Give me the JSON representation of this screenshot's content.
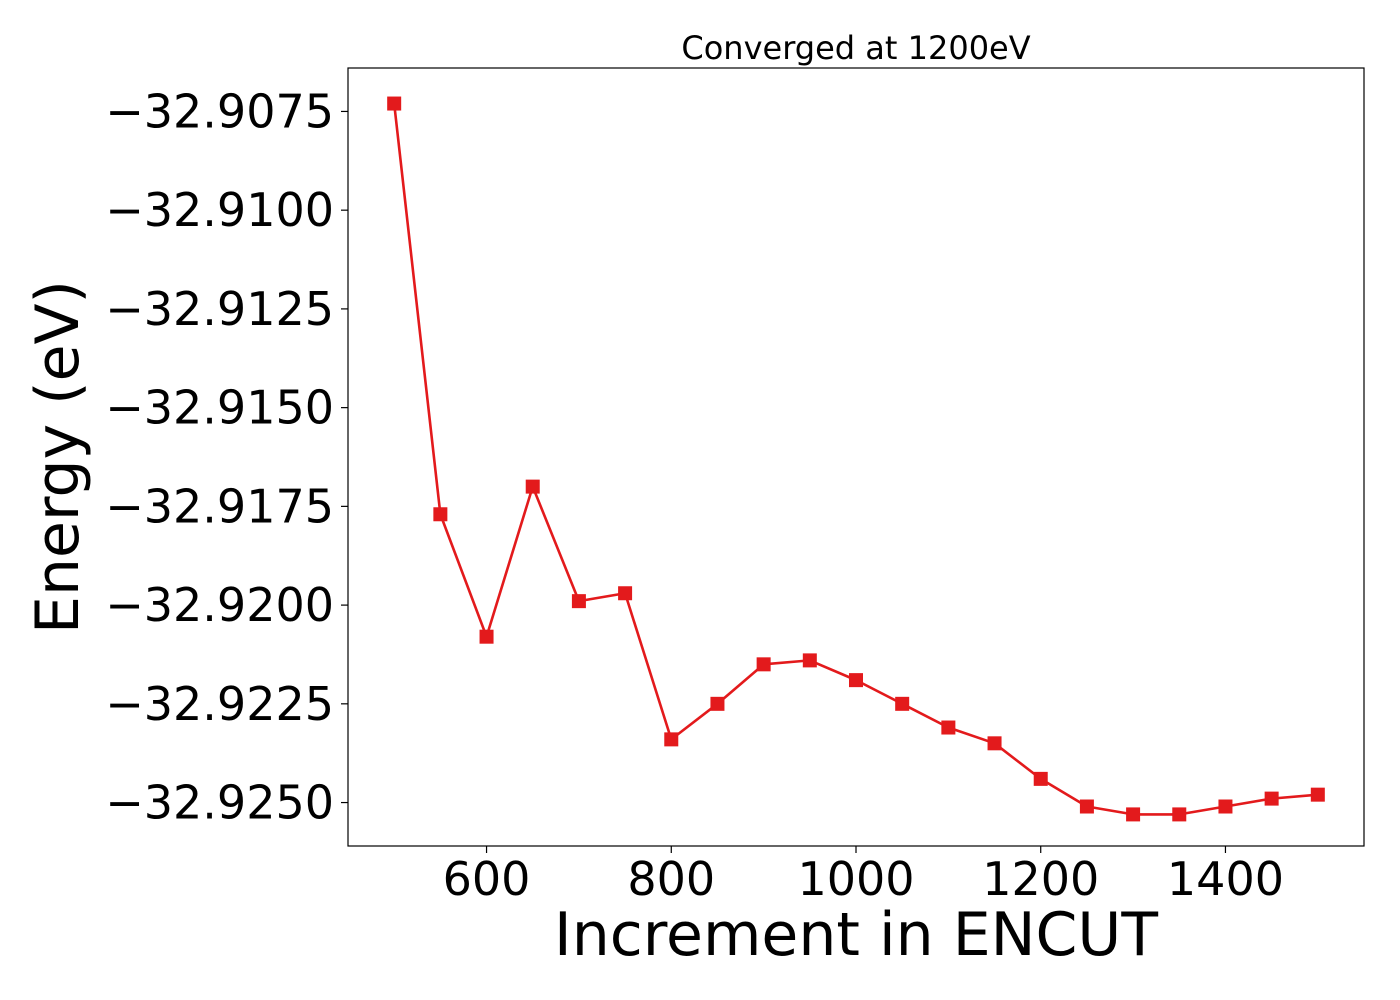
{
  "chart_data": {
    "type": "line",
    "title": "Converged at 1200eV",
    "xlabel": "Increment in ENCUT",
    "ylabel": "Energy (eV)",
    "xlim": [
      450,
      1550
    ],
    "ylim": [
      -32.9261,
      -32.9064
    ],
    "xticks": [
      600,
      800,
      1000,
      1200,
      1400
    ],
    "yticks": [
      -32.9075,
      -32.91,
      -32.9125,
      -32.915,
      -32.9175,
      -32.92,
      -32.9225,
      -32.925
    ],
    "ytick_labels": [
      "−32.9075",
      "−32.9100",
      "−32.9125",
      "−32.9150",
      "−32.9175",
      "−32.9200",
      "−32.9225",
      "−32.9250"
    ],
    "grid": false,
    "series": [
      {
        "color": "#e31a1c",
        "marker": "square",
        "x": [
          500,
          550,
          600,
          650,
          700,
          750,
          800,
          850,
          900,
          950,
          1000,
          1050,
          1100,
          1150,
          1200,
          1250,
          1300,
          1350,
          1400,
          1450,
          1500
        ],
        "y": [
          -32.9073,
          -32.9177,
          -32.9208,
          -32.917,
          -32.9199,
          -32.9197,
          -32.9234,
          -32.9225,
          -32.9215,
          -32.9214,
          -32.9219,
          -32.9225,
          -32.9231,
          -32.9235,
          -32.9244,
          -32.9251,
          -32.9253,
          -32.9253,
          -32.9251,
          -32.9249,
          -32.9248
        ]
      }
    ]
  }
}
